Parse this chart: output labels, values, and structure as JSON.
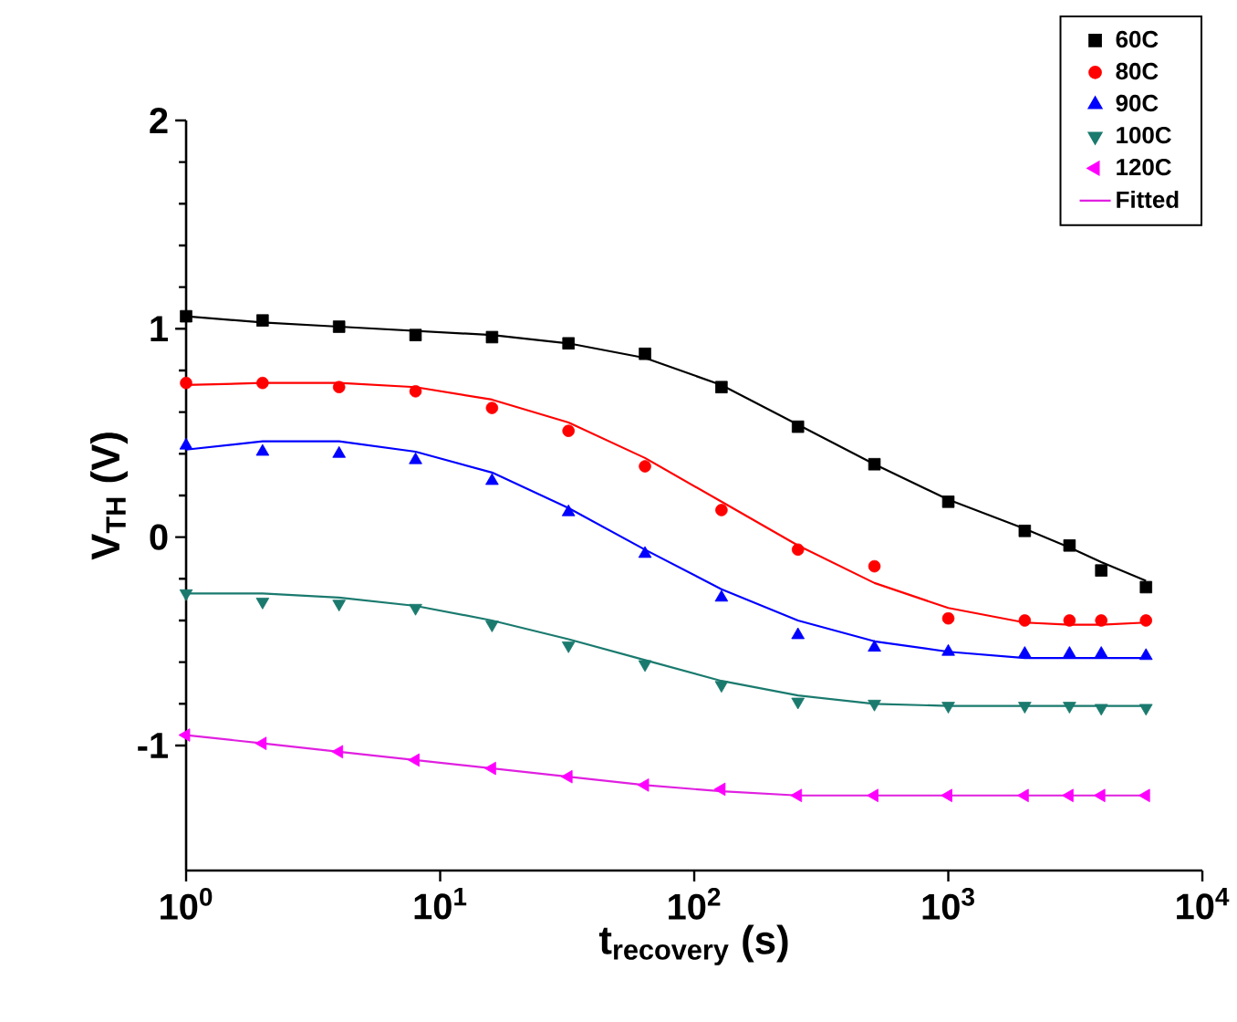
{
  "chart_data": {
    "type": "scatter",
    "xlabel": "t$_{recovery}$ (s)",
    "ylabel": "V$_{TH}$ (V)",
    "log": "x",
    "legend": "top right",
    "xlim": [
      1,
      10000
    ],
    "ylim": [
      -1.6,
      2
    ],
    "xticks": [
      {
        "value": 1,
        "label": "10$^{0}$"
      },
      {
        "value": 10,
        "label": "10$^{1}$"
      },
      {
        "value": 100,
        "label": "10$^{2}$"
      },
      {
        "value": 1000,
        "label": "10$^{3}$"
      },
      {
        "value": 10000,
        "label": "10$^{4}$"
      }
    ],
    "yticks": [
      -1,
      0,
      1,
      2
    ],
    "x": [
      1,
      2,
      4,
      8,
      16,
      32,
      64,
      128,
      256,
      512,
      1000,
      2000,
      3000,
      4000,
      6000
    ],
    "series": [
      {
        "name": "60C",
        "marker": "square",
        "color": "#000000",
        "values": [
          1.06,
          1.04,
          1.01,
          0.97,
          0.96,
          0.93,
          0.88,
          0.72,
          0.53,
          0.35,
          0.17,
          0.03,
          -0.04,
          -0.16,
          -0.24
        ]
      },
      {
        "name": "80C",
        "marker": "circle",
        "color": "#ff0000",
        "values": [
          0.74,
          0.74,
          0.72,
          0.7,
          0.62,
          0.51,
          0.34,
          0.13,
          -0.06,
          -0.14,
          -0.39,
          -0.4,
          -0.4,
          -0.4,
          -0.4
        ]
      },
      {
        "name": "90C",
        "marker": "triangle",
        "color": "#0000ff",
        "values": [
          0.44,
          0.41,
          0.4,
          0.37,
          0.27,
          0.12,
          -0.08,
          -0.29,
          -0.47,
          -0.53,
          -0.55,
          -0.56,
          -0.56,
          -0.56,
          -0.57
        ]
      },
      {
        "name": "100C",
        "marker": "triangle-down",
        "color": "#1a7a6e",
        "values": [
          -0.27,
          -0.31,
          -0.32,
          -0.34,
          -0.42,
          -0.52,
          -0.61,
          -0.71,
          -0.79,
          -0.8,
          -0.81,
          -0.81,
          -0.81,
          -0.82,
          -0.82
        ]
      },
      {
        "name": "120C",
        "marker": "triangle-left",
        "color": "#ff00ff",
        "values": [
          -0.95,
          -0.99,
          -1.03,
          -1.07,
          -1.11,
          -1.15,
          -1.19,
          -1.21,
          -1.24,
          -1.24,
          -1.24,
          -1.24,
          -1.24,
          -1.24,
          -1.24
        ]
      },
      {
        "type": "line",
        "color": "#000000",
        "values": [
          1.06,
          1.03,
          1.01,
          0.99,
          0.97,
          0.93,
          0.86,
          0.73,
          0.54,
          0.35,
          0.18,
          0.04,
          -0.05,
          -0.12,
          -0.21
        ]
      },
      {
        "type": "line",
        "color": "#ff0000",
        "values": [
          0.73,
          0.74,
          0.74,
          0.72,
          0.66,
          0.55,
          0.38,
          0.17,
          -0.04,
          -0.22,
          -0.34,
          -0.41,
          -0.42,
          -0.42,
          -0.41
        ]
      },
      {
        "type": "line",
        "color": "#0000ff",
        "values": [
          0.42,
          0.46,
          0.46,
          0.41,
          0.31,
          0.14,
          -0.06,
          -0.25,
          -0.4,
          -0.5,
          -0.55,
          -0.58,
          -0.58,
          -0.58,
          -0.58
        ]
      },
      {
        "type": "line",
        "color": "#1a7a6e",
        "values": [
          -0.27,
          -0.27,
          -0.29,
          -0.33,
          -0.4,
          -0.49,
          -0.59,
          -0.69,
          -0.76,
          -0.8,
          -0.81,
          -0.81,
          -0.81,
          -0.81,
          -0.81
        ]
      },
      {
        "name": "Fitted",
        "type": "line",
        "color": "#e020e0",
        "values": [
          -0.95,
          -0.99,
          -1.03,
          -1.07,
          -1.11,
          -1.15,
          -1.19,
          -1.22,
          -1.24,
          -1.24,
          -1.24,
          -1.24,
          -1.24,
          -1.24,
          -1.24
        ]
      }
    ]
  }
}
